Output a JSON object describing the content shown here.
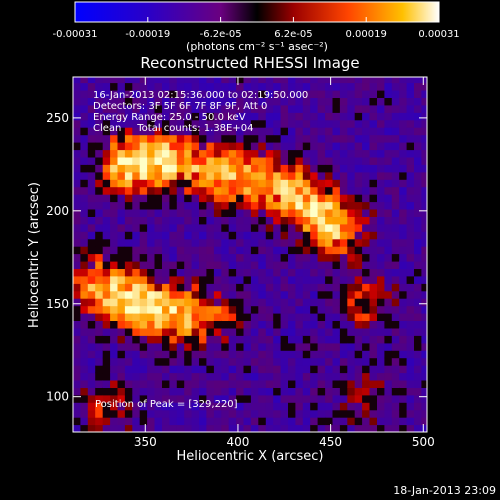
{
  "chart_data": {
    "type": "heatmap",
    "title": "Reconstructed RHESSI Image",
    "xlabel": "Heliocentric X (arcsec)",
    "ylabel": "Heliocentric Y (arcsec)",
    "xlim": [
      311,
      502
    ],
    "ylim": [
      81,
      272
    ],
    "x_ticks": [
      350,
      400,
      450,
      500
    ],
    "y_ticks": [
      100,
      150,
      200,
      250
    ],
    "colorbar": {
      "ticks": [
        "-0.00031",
        "-0.00019",
        "-6.2e-05",
        "6.2e-05",
        "0.00019",
        "0.00031"
      ],
      "unit": "(photons cm⁻² s⁻¹ asec⁻²)",
      "range": [
        -0.00031,
        0.00031
      ]
    },
    "annotations": {
      "time": "16-Jan-2013 02:15:36.000 to 02:19:50.000",
      "detectors": "Detectors: 3F 5F 6F 7F 8F 9F, Att 0",
      "energy": "Energy Range: 25.0 - 50.0 keV",
      "clean": "Clean     Total counts: 1.38E+04",
      "peak": "Position of Peak = [329,220]"
    },
    "bright_regions": [
      {
        "x": 340,
        "y": 225,
        "intensity": 1.0
      },
      {
        "x": 360,
        "y": 228,
        "intensity": 0.9
      },
      {
        "x": 385,
        "y": 222,
        "intensity": 0.8
      },
      {
        "x": 405,
        "y": 218,
        "intensity": 0.7
      },
      {
        "x": 425,
        "y": 214,
        "intensity": 0.7
      },
      {
        "x": 440,
        "y": 200,
        "intensity": 0.8
      },
      {
        "x": 455,
        "y": 190,
        "intensity": 0.75
      },
      {
        "x": 325,
        "y": 160,
        "intensity": 0.85
      },
      {
        "x": 345,
        "y": 150,
        "intensity": 0.95
      },
      {
        "x": 365,
        "y": 145,
        "intensity": 0.8
      },
      {
        "x": 385,
        "y": 143,
        "intensity": 0.6
      },
      {
        "x": 470,
        "y": 150,
        "intensity": 0.55
      },
      {
        "x": 330,
        "y": 95,
        "intensity": 0.45
      },
      {
        "x": 470,
        "y": 100,
        "intensity": 0.4
      }
    ]
  },
  "footer": {
    "date": "18-Jan-2013 23:09"
  }
}
